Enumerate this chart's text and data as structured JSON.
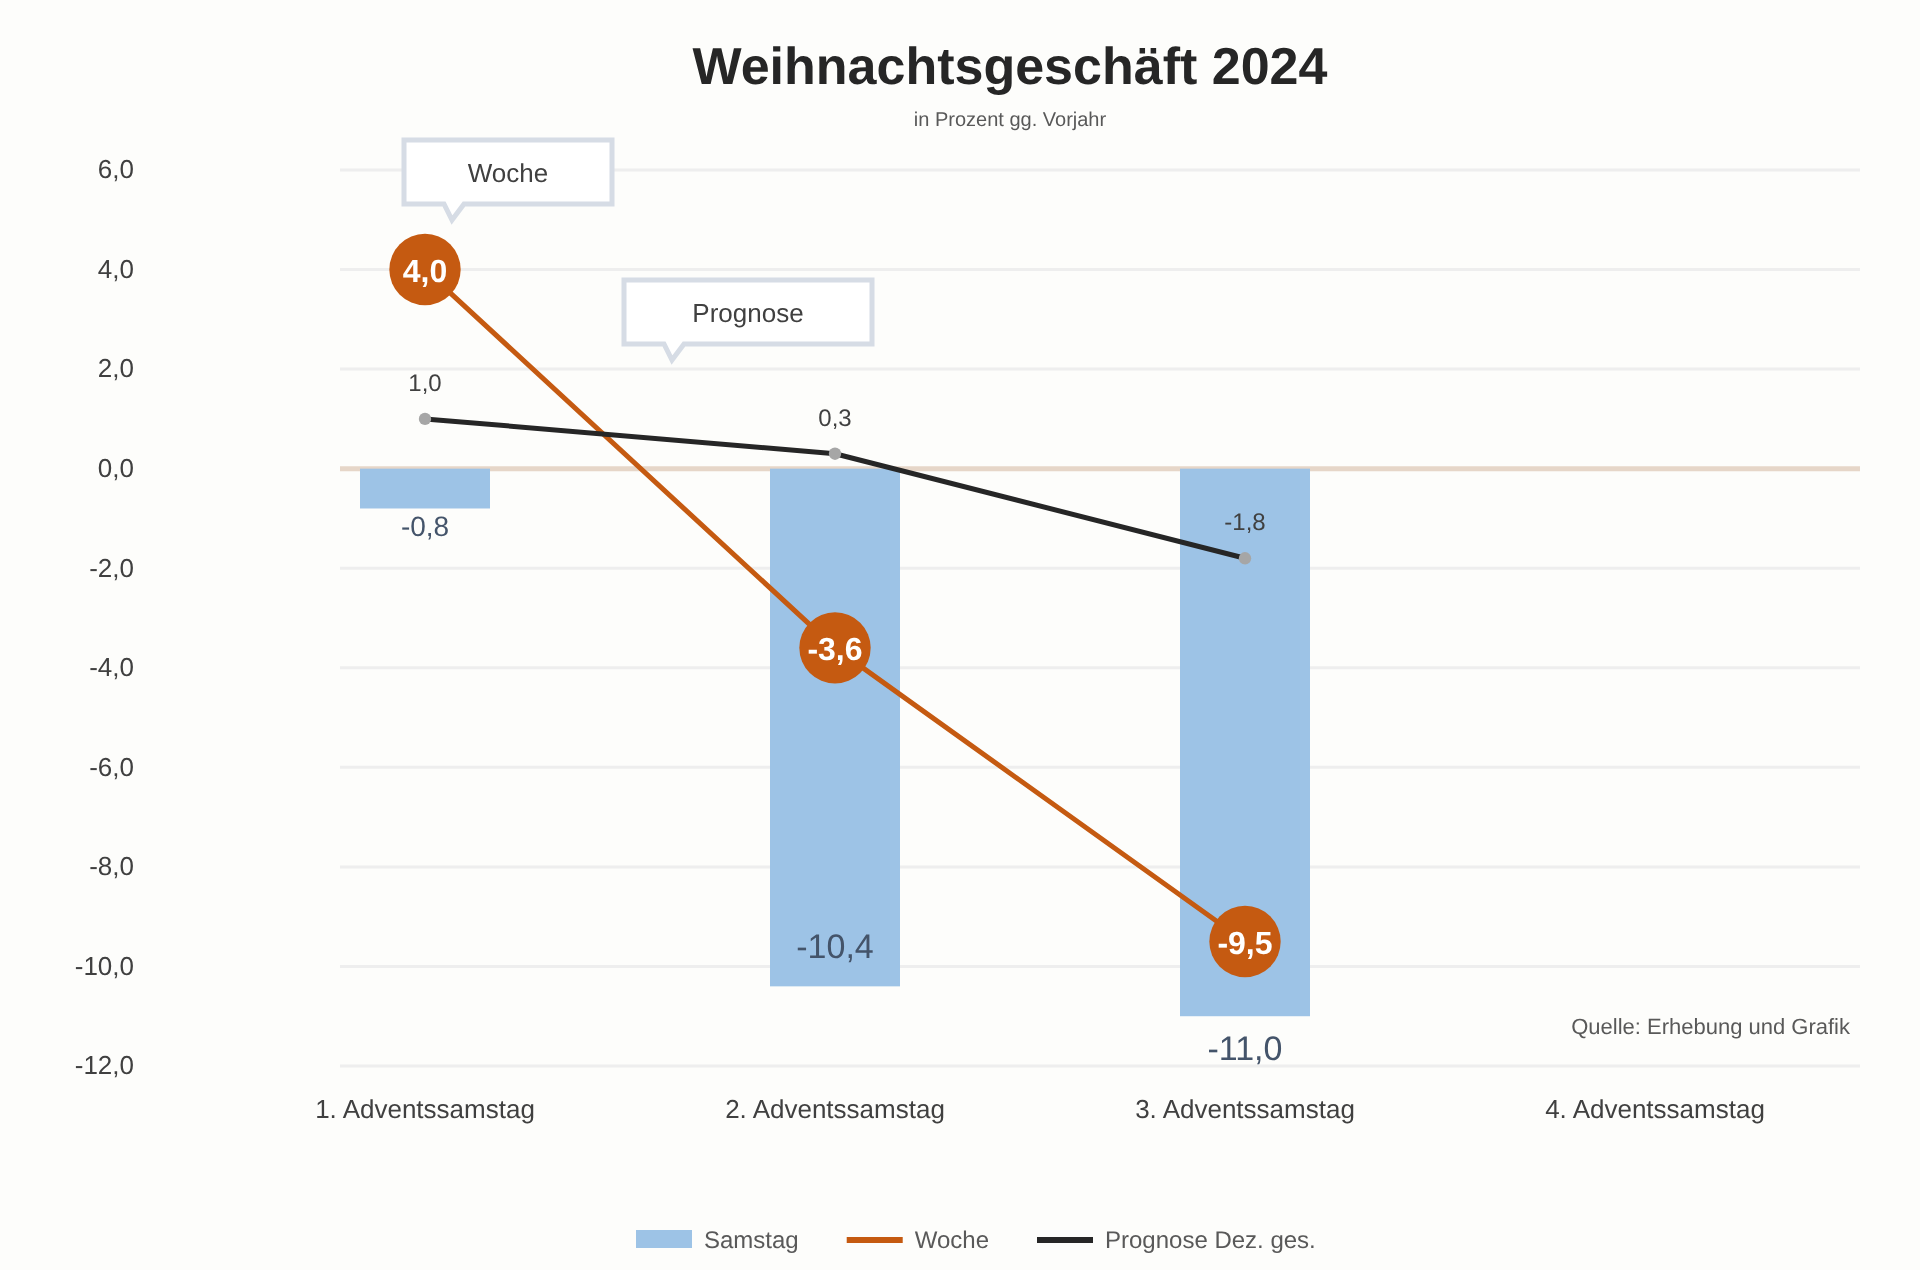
{
  "chart_data": {
    "type": "bar",
    "title": "Weihnachtsgeschäft 2024",
    "subtitle": "in Prozent gg. Vorjahr",
    "categories": [
      "1. Adventssamstag",
      "2. Adventssamstag",
      "3. Adventssamstag",
      "4. Adventssamstag"
    ],
    "series": [
      {
        "name": "Samstag",
        "color": "#9dc3e6",
        "values": [
          -0.8,
          -10.4,
          -11.0,
          null
        ],
        "value_labels": [
          "-0,8",
          "-10,4",
          "-11,0",
          null
        ]
      },
      {
        "name": "Woche",
        "type": "line",
        "color": "#c55a11",
        "marker": "circle",
        "values": [
          4.0,
          -3.6,
          -9.5,
          null
        ],
        "value_labels": [
          "4,0",
          "-3,6",
          "-9,5",
          null
        ]
      },
      {
        "name": "Prognose Dez. ges.",
        "type": "line",
        "color": "#262626",
        "marker": "circle",
        "values": [
          1.0,
          0.3,
          -1.8,
          null
        ],
        "value_labels": [
          "1,0",
          "0,3",
          "-1,8",
          null
        ]
      }
    ],
    "ylim": [
      -12,
      6
    ],
    "yticks": [
      {
        "value": -12,
        "label": "-12,0"
      },
      {
        "value": -10,
        "label": "-10,0"
      },
      {
        "value": -8,
        "label": "-8,0"
      },
      {
        "value": -6,
        "label": "-6,0"
      },
      {
        "value": -4,
        "label": "-4,0"
      },
      {
        "value": -2,
        "label": "-2,0"
      },
      {
        "value": 0,
        "label": "0,0"
      },
      {
        "value": 2,
        "label": "2,0"
      },
      {
        "value": 4,
        "label": "4,0"
      },
      {
        "value": 6,
        "label": "6,0"
      }
    ],
    "grid": "y",
    "legend": "bottom",
    "ref_lines": [
      {
        "axis": "y",
        "value": 0,
        "label": null,
        "color": "#e6d6c8"
      }
    ],
    "annotations": [
      "Woche",
      "Prognose",
      "Quelle: Erhebung und Grafik"
    ]
  }
}
